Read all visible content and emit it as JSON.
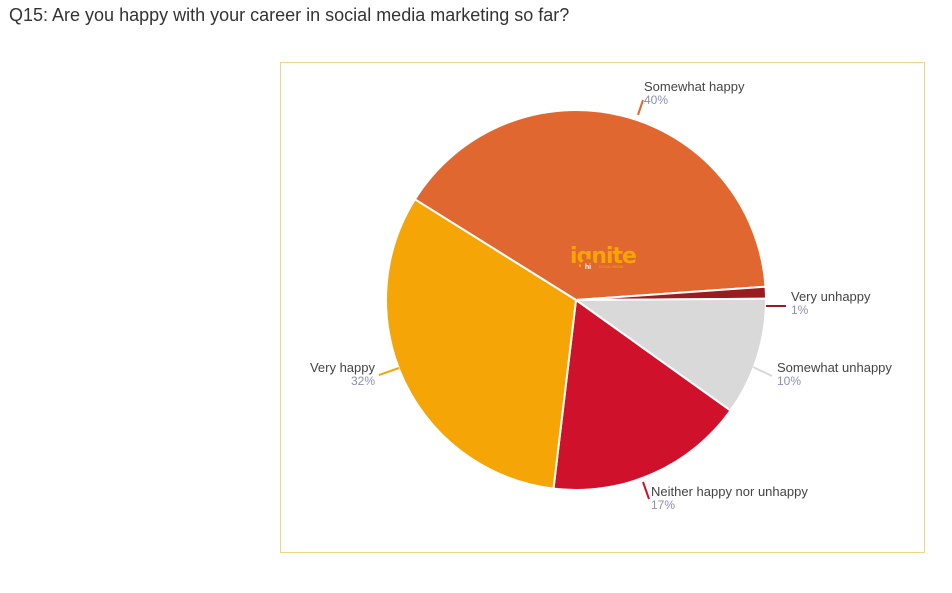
{
  "question": "Q15: Are you happy with your career in social media marketing so far?",
  "logo": {
    "word": "ignite",
    "badge": "hi",
    "tagline": "SOCIAL MEDIA"
  },
  "chart_data": {
    "type": "pie",
    "title": "",
    "slices": [
      {
        "label": "Somewhat happy",
        "value": 40,
        "pct_label": "40%",
        "color": "#e06830"
      },
      {
        "label": "Very unhappy",
        "value": 1,
        "pct_label": "1%",
        "color": "#9b1c20"
      },
      {
        "label": "Somewhat unhappy",
        "value": 10,
        "pct_label": "10%",
        "color": "#d9d9d9"
      },
      {
        "label": "Neither happy nor unhappy",
        "value": 17,
        "pct_label": "17%",
        "color": "#d0112b"
      },
      {
        "label": "Very happy",
        "value": 32,
        "pct_label": "32%",
        "color": "#f5a506"
      }
    ]
  }
}
